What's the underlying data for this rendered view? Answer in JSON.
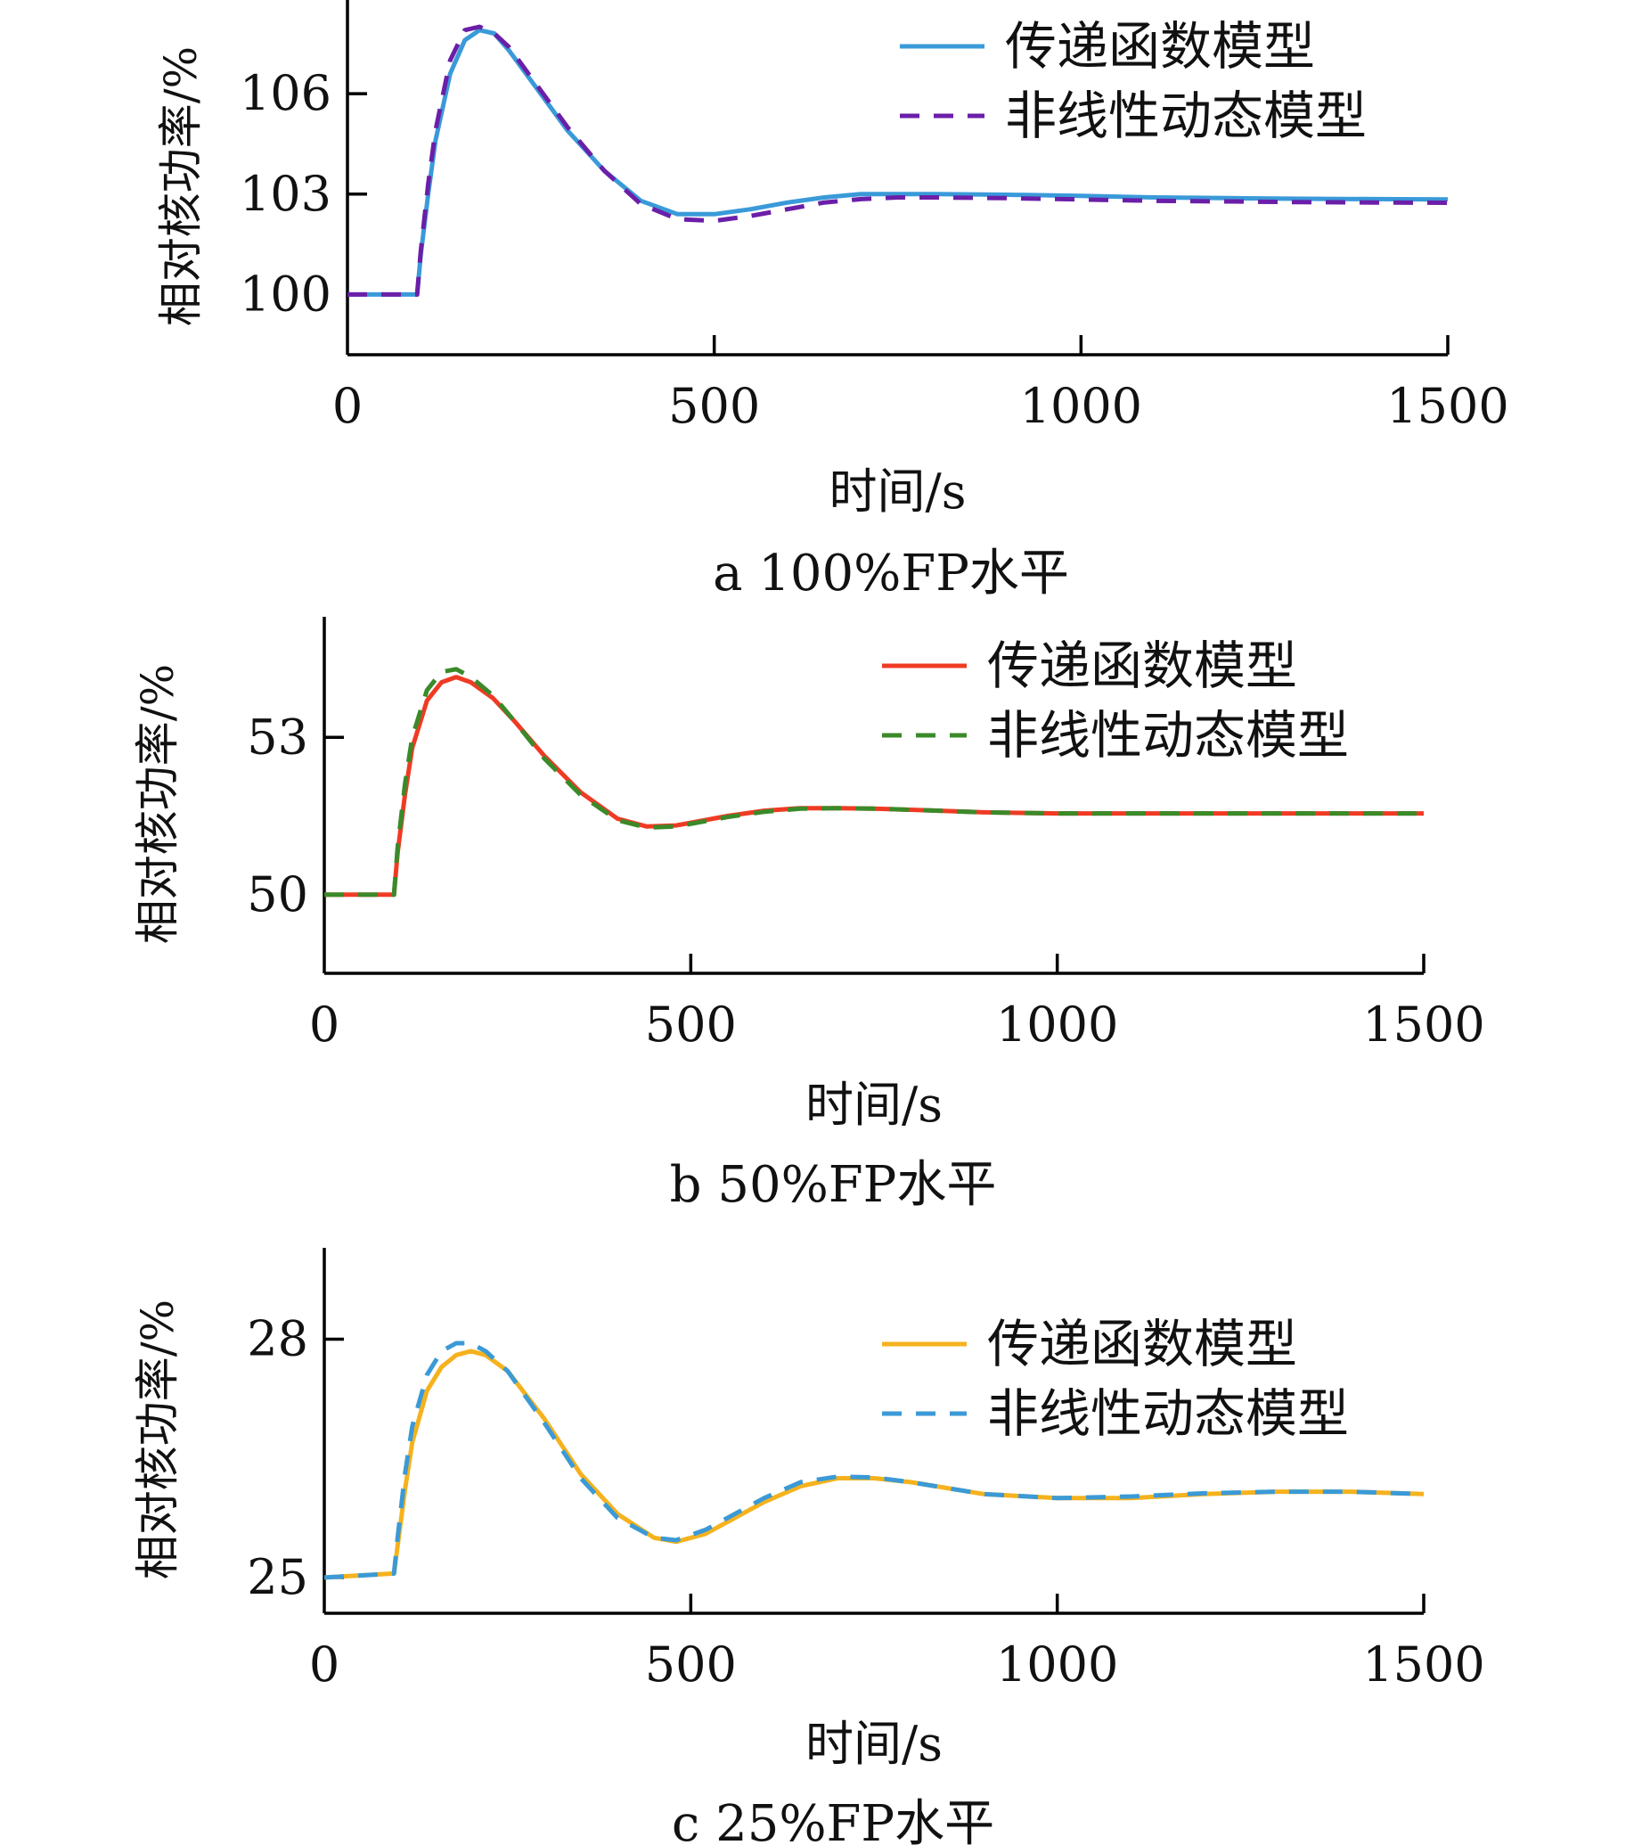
{
  "chart_data": [
    {
      "type": "line",
      "caption": "a  100%FP水平",
      "xlabel": "时间/s",
      "ylabel": "相对核功率/%",
      "xlim": [
        0,
        1500
      ],
      "ylim": [
        98.2,
        108.8
      ],
      "xticks": [
        "0",
        "500",
        "1000",
        "1500"
      ],
      "yticks": [
        "100",
        "103",
        "106"
      ],
      "legend_position": "top-right",
      "series": [
        {
          "name": "传递函数模型",
          "style": "solid",
          "color": "#3a9ad9",
          "x": [
            0,
            95,
            100,
            110,
            120,
            140,
            160,
            180,
            200,
            220,
            260,
            300,
            350,
            400,
            450,
            500,
            550,
            600,
            650,
            700,
            750,
            800,
            900,
            1000,
            1100,
            1200,
            1300,
            1400,
            1500
          ],
          "y": [
            100.0,
            100.0,
            101.2,
            103.0,
            104.6,
            106.6,
            107.6,
            107.9,
            107.8,
            107.3,
            106.1,
            104.9,
            103.7,
            102.8,
            102.4,
            102.4,
            102.55,
            102.75,
            102.9,
            103.0,
            103.0,
            103.0,
            102.98,
            102.95,
            102.9,
            102.88,
            102.86,
            102.85,
            102.84
          ]
        },
        {
          "name": "非线性动态模型",
          "style": "dashed",
          "color": "#6b1fa8",
          "x": [
            0,
            95,
            100,
            110,
            120,
            140,
            160,
            180,
            200,
            220,
            260,
            300,
            350,
            400,
            450,
            500,
            550,
            600,
            650,
            700,
            750,
            800,
            900,
            1000,
            1100,
            1200,
            1300,
            1400,
            1500
          ],
          "y": [
            100.0,
            100.0,
            101.3,
            103.3,
            104.9,
            107.0,
            107.9,
            108.0,
            107.8,
            107.4,
            106.2,
            105.0,
            103.7,
            102.7,
            102.25,
            102.2,
            102.35,
            102.55,
            102.75,
            102.85,
            102.9,
            102.9,
            102.88,
            102.84,
            102.8,
            102.78,
            102.76,
            102.75,
            102.74
          ]
        }
      ]
    },
    {
      "type": "line",
      "caption": "b  50%FP水平",
      "xlabel": "时间/s",
      "ylabel": "相对核功率/%",
      "xlim": [
        0,
        1500
      ],
      "ylim": [
        48.5,
        55.3
      ],
      "xticks": [
        "0",
        "500",
        "1000",
        "1500"
      ],
      "yticks": [
        "50",
        "53"
      ],
      "legend_position": "top-right",
      "series": [
        {
          "name": "传递函数模型",
          "style": "solid",
          "color": "#ef3b24",
          "x": [
            0,
            95,
            100,
            110,
            120,
            140,
            160,
            180,
            200,
            230,
            260,
            300,
            350,
            400,
            440,
            480,
            550,
            600,
            650,
            700,
            750,
            800,
            900,
            1000,
            1100,
            1200,
            1300,
            1400,
            1500
          ],
          "y": [
            50.0,
            50.0,
            50.8,
            51.9,
            52.8,
            53.7,
            54.05,
            54.15,
            54.05,
            53.75,
            53.3,
            52.65,
            51.95,
            51.45,
            51.3,
            51.32,
            51.5,
            51.6,
            51.65,
            51.65,
            51.64,
            51.62,
            51.57,
            51.55,
            51.55,
            51.55,
            51.55,
            51.55,
            51.55
          ]
        },
        {
          "name": "非线性动态模型",
          "style": "dashed",
          "color": "#3a8a2a",
          "x": [
            0,
            95,
            100,
            110,
            120,
            140,
            160,
            180,
            200,
            230,
            260,
            300,
            350,
            400,
            440,
            480,
            550,
            600,
            650,
            700,
            750,
            800,
            900,
            1000,
            1100,
            1200,
            1300,
            1400,
            1500
          ],
          "y": [
            50.0,
            50.0,
            50.9,
            52.1,
            53.0,
            53.9,
            54.25,
            54.3,
            54.15,
            53.8,
            53.3,
            52.6,
            51.9,
            51.42,
            51.28,
            51.3,
            51.48,
            51.58,
            51.64,
            51.65,
            51.64,
            51.62,
            51.57,
            51.55,
            51.55,
            51.55,
            51.55,
            51.55,
            51.55
          ]
        }
      ]
    },
    {
      "type": "line",
      "caption": "c  25%FP水平",
      "xlabel": "时间/s",
      "ylabel": "相对核功率/%",
      "xlim": [
        0,
        1500
      ],
      "ylim": [
        24.55,
        29.15
      ],
      "xticks": [
        "0",
        "500",
        "1000",
        "1500"
      ],
      "yticks": [
        "25",
        "28"
      ],
      "legend_position": "top-right",
      "series": [
        {
          "name": "传递函数模型",
          "style": "solid",
          "color": "#f5b21d",
          "x": [
            0,
            95,
            100,
            110,
            120,
            140,
            160,
            180,
            200,
            220,
            250,
            300,
            350,
            400,
            450,
            480,
            520,
            600,
            650,
            700,
            750,
            800,
            900,
            1000,
            1100,
            1200,
            1300,
            1400,
            1500
          ],
          "y": [
            25.0,
            25.05,
            25.4,
            26.1,
            26.7,
            27.35,
            27.65,
            27.8,
            27.85,
            27.8,
            27.6,
            27.0,
            26.3,
            25.8,
            25.5,
            25.45,
            25.55,
            25.95,
            26.15,
            26.25,
            26.25,
            26.2,
            26.05,
            26.0,
            26.0,
            26.05,
            26.08,
            26.08,
            26.05
          ]
        },
        {
          "name": "非线性动态模型",
          "style": "dashed",
          "color": "#3b9ad6",
          "x": [
            0,
            95,
            100,
            110,
            120,
            140,
            160,
            180,
            200,
            220,
            250,
            300,
            350,
            400,
            450,
            480,
            520,
            600,
            650,
            700,
            750,
            800,
            900,
            1000,
            1100,
            1200,
            1300,
            1400,
            1500
          ],
          "y": [
            25.0,
            25.05,
            25.5,
            26.3,
            26.9,
            27.55,
            27.85,
            27.95,
            27.95,
            27.85,
            27.6,
            26.95,
            26.25,
            25.75,
            25.5,
            25.47,
            25.6,
            26.0,
            26.2,
            26.27,
            26.26,
            26.2,
            26.05,
            26.0,
            26.02,
            26.06,
            26.08,
            26.08,
            26.05
          ]
        }
      ]
    }
  ]
}
